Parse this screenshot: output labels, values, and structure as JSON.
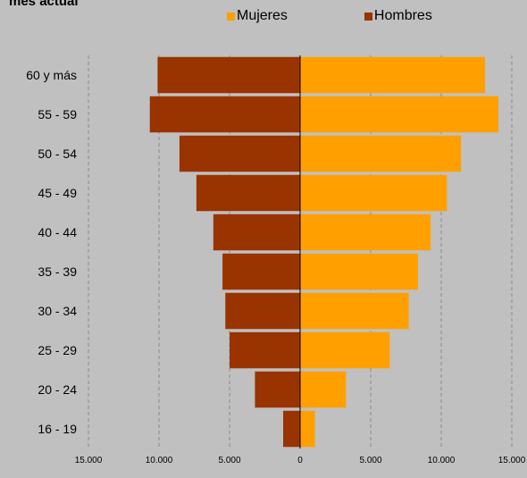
{
  "chart_data": {
    "type": "bar",
    "title": "mes actual",
    "categories": [
      "60 y más",
      "55 - 59",
      "50 - 54",
      "45 - 49",
      "40 - 44",
      "35 - 39",
      "30 - 34",
      "25 - 29",
      "20 - 24",
      "16 - 19"
    ],
    "series": [
      {
        "name": "Mujeres",
        "color": "#ff9f00",
        "values": [
          13100,
          14050,
          11400,
          10400,
          9250,
          8350,
          7700,
          6350,
          3250,
          1050
        ]
      },
      {
        "name": "Hombres",
        "color": "#993300",
        "values": [
          10100,
          10650,
          8550,
          7350,
          6150,
          5500,
          5300,
          5000,
          3200,
          1200
        ]
      }
    ],
    "xlim": [
      -15000,
      15000
    ],
    "xticks": [
      -15000,
      -10000,
      -5000,
      0,
      5000,
      10000,
      15000
    ],
    "xtick_labels": [
      "15.000",
      "10.000",
      "5.000",
      "0",
      "5.000",
      "10.000",
      "15.000"
    ],
    "grid": true,
    "legend_position": "top",
    "xlabel": "",
    "ylabel": ""
  }
}
